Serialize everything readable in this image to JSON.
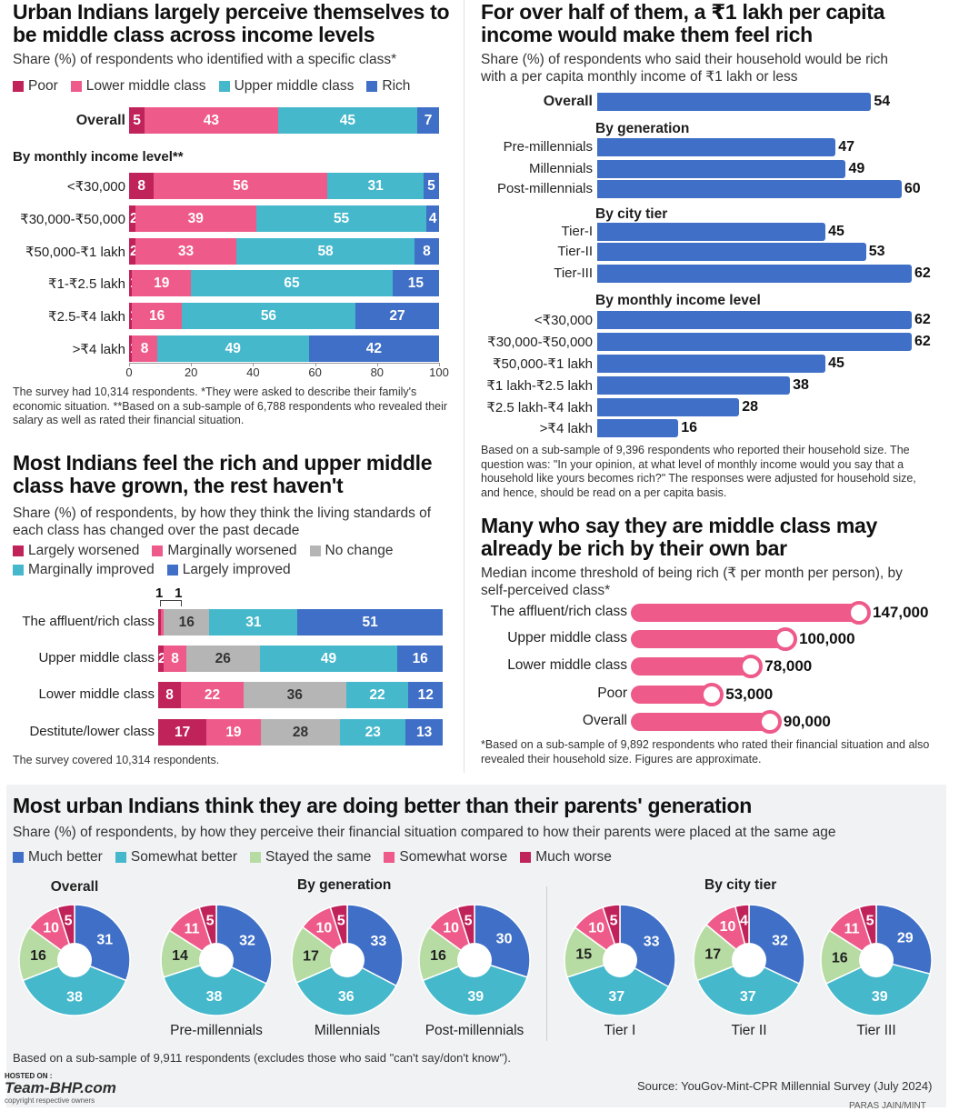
{
  "colors": {
    "poor": "#c0225a",
    "lower_middle": "#ee5a8a",
    "upper_middle": "#45b8cc",
    "rich": "#3f6fc6",
    "largely_worsened": "#c0225a",
    "marginally_worsened": "#ee5a8a",
    "no_change": "#b5b5b5",
    "marginally_improved": "#45b8cc",
    "largely_improved": "#3f6fc6",
    "much_better": "#3f6fc6",
    "somewhat_better": "#45b8cc",
    "stayed_same": "#b7dca3",
    "somewhat_worse": "#ee5a8a",
    "much_worse": "#c0225a",
    "rich_bar": "#3f6fc6",
    "threshold_bar": "#ee5a8a"
  },
  "chart_data": [
    {
      "type": "bar",
      "orientation": "horizontal-stacked",
      "title": "Urban Indians largely perceive themselves to be middle class across income levels",
      "subtitle": "Share (%) of respondents who identified with a specific class*",
      "legend": [
        "Poor",
        "Lower middle class",
        "Upper middle class",
        "Rich"
      ],
      "section_label": "By monthly income level**",
      "xticks": [
        "0",
        "20",
        "40",
        "60",
        "80",
        "100"
      ],
      "xlim": [
        0,
        100
      ],
      "rows": [
        {
          "label": "Overall",
          "values": [
            5,
            43,
            45,
            7
          ]
        },
        {
          "label": "<₹30,000",
          "values": [
            8,
            56,
            31,
            5
          ]
        },
        {
          "label": "₹30,000-₹50,000",
          "values": [
            2,
            39,
            55,
            4
          ]
        },
        {
          "label": "₹50,000-₹1 lakh",
          "values": [
            2,
            33,
            58,
            8
          ]
        },
        {
          "label": "₹1-₹2.5 lakh",
          "values": [
            1,
            19,
            65,
            15
          ]
        },
        {
          "label": "₹2.5-₹4 lakh",
          "values": [
            1,
            16,
            56,
            27
          ]
        },
        {
          "label": ">₹4 lakh",
          "values": [
            1,
            8,
            49,
            42
          ]
        }
      ],
      "note": "The survey had 10,314 respondents. *They were asked to describe their family's economic situation. **Based on a sub-sample of 6,788 respondents who revealed their salary as well as rated their financial situation."
    },
    {
      "type": "bar",
      "orientation": "horizontal",
      "title": "For over half of them, a ₹1 lakh per capita income would make them feel rich",
      "subtitle": "Share (%) of respondents who said their household would be rich with a per capita monthly income of ₹1 lakh or less",
      "groups": [
        {
          "label": "",
          "rows": [
            {
              "label": "Overall",
              "value": 54
            }
          ]
        },
        {
          "label": "By generation",
          "rows": [
            {
              "label": "Pre-millennials",
              "value": 47
            },
            {
              "label": "Millennials",
              "value": 49
            },
            {
              "label": "Post-millennials",
              "value": 60
            }
          ]
        },
        {
          "label": "By city tier",
          "rows": [
            {
              "label": "Tier-I",
              "value": 45
            },
            {
              "label": "Tier-II",
              "value": 53
            },
            {
              "label": "Tier-III",
              "value": 62
            }
          ]
        },
        {
          "label": "By monthly income level",
          "rows": [
            {
              "label": "<₹30,000",
              "value": 62
            },
            {
              "label": "₹30,000-₹50,000",
              "value": 62
            },
            {
              "label": "₹50,000-₹1 lakh",
              "value": 45
            },
            {
              "label": "₹1 lakh-₹2.5 lakh",
              "value": 38
            },
            {
              "label": "₹2.5 lakh-₹4 lakh",
              "value": 28
            },
            {
              "label": ">₹4 lakh",
              "value": 16
            }
          ]
        }
      ],
      "xlim": [
        0,
        62
      ],
      "note": "Based on a sub-sample of 9,396 respondents who reported their household size. The question was: \"In your opinion, at what level of monthly income would you say that a household like yours becomes rich?\" The responses were adjusted for household size, and hence, should be read on a per capita basis."
    },
    {
      "type": "bar",
      "orientation": "horizontal-stacked",
      "title": "Most Indians feel the rich and upper middle class have grown, the rest haven't",
      "subtitle": "Share (%) of respondents, by how they think the living standards of each class has changed over the past decade",
      "legend": [
        "Largely worsened",
        "Marginally worsened",
        "No change",
        "Marginally improved",
        "Largely improved"
      ],
      "rows": [
        {
          "label": "The affluent/rich class",
          "values": [
            1,
            1,
            16,
            31,
            51
          ]
        },
        {
          "label": "Upper middle class",
          "values": [
            2,
            8,
            26,
            49,
            16
          ]
        },
        {
          "label": "Lower middle class",
          "values": [
            8,
            22,
            36,
            22,
            12
          ]
        },
        {
          "label": "Destitute/lower class",
          "values": [
            17,
            19,
            28,
            23,
            13
          ]
        }
      ],
      "note": "The survey covered 10,314 respondents."
    },
    {
      "type": "bar",
      "orientation": "horizontal",
      "title": "Many who say they are middle class may already be rich by their own bar",
      "subtitle": "Median income threshold of being rich (₹ per month per person), by self-perceived class*",
      "rows": [
        {
          "label": "The affluent/rich class",
          "value": 147000,
          "display": "147,000"
        },
        {
          "label": "Upper middle class",
          "value": 100000,
          "display": "100,000"
        },
        {
          "label": "Lower middle class",
          "value": 78000,
          "display": "78,000"
        },
        {
          "label": "Poor",
          "value": 53000,
          "display": "53,000"
        },
        {
          "label": "Overall",
          "value": 90000,
          "display": "90,000"
        }
      ],
      "xlim": [
        0,
        147000
      ],
      "note": "*Based on a sub-sample of 9,892 respondents who rated their financial situation and also revealed their household size. Figures are approximate."
    },
    {
      "type": "pie",
      "title": "Most urban Indians think they are doing better than their parents' generation",
      "subtitle": "Share (%) of respondents, by how they perceive their financial situation compared to how their parents were placed at the same age",
      "legend": [
        "Much better",
        "Somewhat better",
        "Stayed the same",
        "Somewhat worse",
        "Much worse"
      ],
      "group_labels": {
        "generation": "By generation",
        "city": "By city tier"
      },
      "pies": [
        {
          "label": "Overall",
          "values": [
            31,
            38,
            16,
            10,
            5
          ]
        },
        {
          "label": "Pre-millennials",
          "values": [
            32,
            38,
            14,
            11,
            5
          ]
        },
        {
          "label": "Millennials",
          "values": [
            33,
            36,
            17,
            10,
            5
          ]
        },
        {
          "label": "Post-millennials",
          "values": [
            30,
            39,
            16,
            10,
            5
          ]
        },
        {
          "label": "Tier I",
          "values": [
            33,
            37,
            15,
            10,
            5
          ]
        },
        {
          "label": "Tier II",
          "values": [
            32,
            37,
            17,
            10,
            4
          ]
        },
        {
          "label": "Tier III",
          "values": [
            29,
            39,
            16,
            11,
            5
          ]
        }
      ],
      "note": "Based on a sub-sample of 9,911 respondents (excludes those who said \"can't say/don't know\").",
      "source": "Source: YouGov-Mint-CPR Millennial Survey (July 2024)"
    }
  ],
  "watermark": {
    "line1": "HOSTED ON :",
    "brand": "Team-BHP.com",
    "line3": "copyright respective owners"
  },
  "credit": "PARAS JAIN/MINT"
}
